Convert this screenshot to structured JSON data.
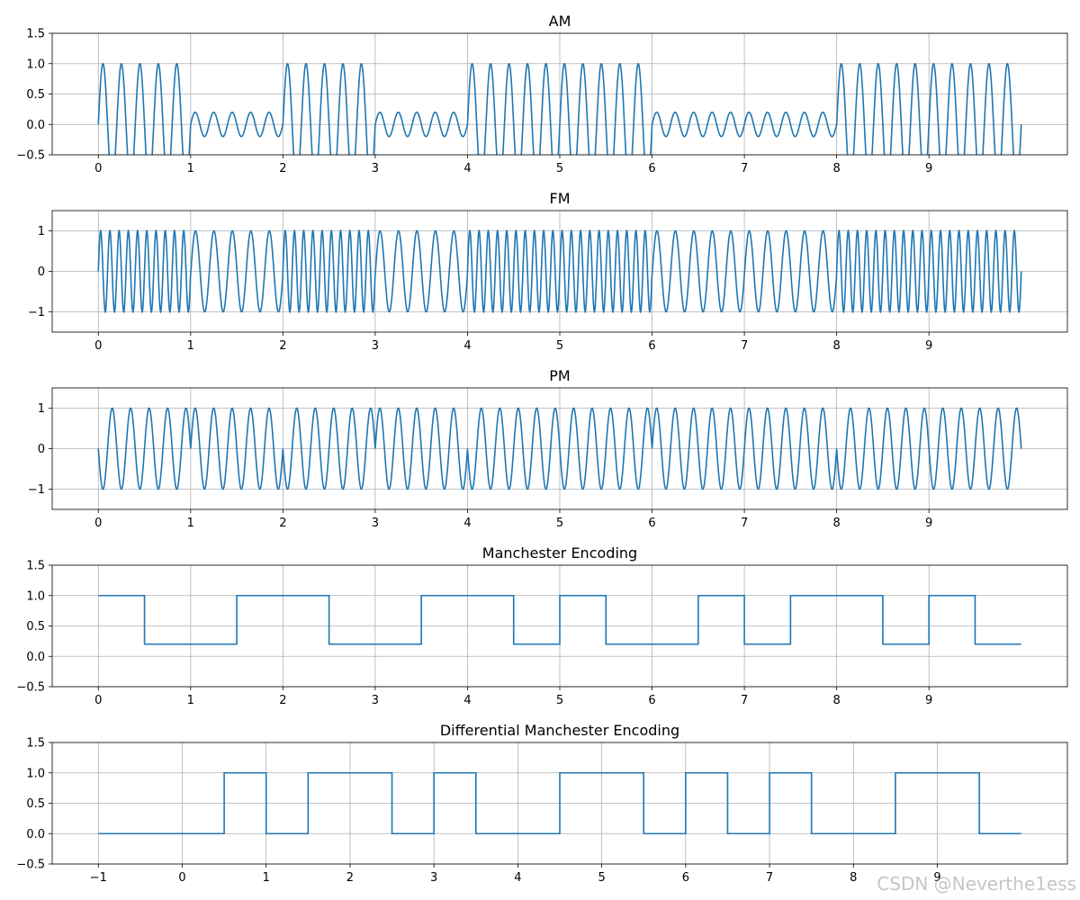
{
  "watermark": "CSDN @Neverthe1ess",
  "colors": {
    "line": "#1f77b4",
    "grid": "#b0b0b0",
    "axes": "#000000"
  },
  "chart_data": [
    {
      "type": "line",
      "title": "AM",
      "xlabel": "",
      "ylabel": "",
      "xlim": [
        -0.5,
        10.5
      ],
      "ylim": [
        -0.5,
        1.5
      ],
      "xticks": [
        0,
        1,
        2,
        3,
        4,
        5,
        6,
        7,
        8,
        9
      ],
      "yticks": [
        -0.5,
        0.0,
        0.5,
        1.0,
        1.5
      ],
      "ytick_labels": [
        "−0.5",
        "0.0",
        "0.5",
        "1.0",
        "1.5"
      ],
      "grid": true,
      "signal": {
        "kind": "am",
        "bits": [
          1,
          0,
          1,
          0,
          1,
          1,
          0,
          0,
          1,
          1
        ],
        "carrier_freq": 5,
        "amplitude_one": 1.0,
        "amplitude_zero": 0.2,
        "t_range": [
          0,
          10
        ]
      }
    },
    {
      "type": "line",
      "title": "FM",
      "xlabel": "",
      "ylabel": "",
      "xlim": [
        -0.5,
        10.5
      ],
      "ylim": [
        -1.5,
        1.5
      ],
      "xticks": [
        0,
        1,
        2,
        3,
        4,
        5,
        6,
        7,
        8,
        9
      ],
      "yticks": [
        -1,
        0,
        1
      ],
      "ytick_labels": [
        "−1",
        "0",
        "1"
      ],
      "grid": true,
      "signal": {
        "kind": "fm",
        "bits": [
          1,
          0,
          1,
          0,
          1,
          1,
          0,
          0,
          1,
          1
        ],
        "freq_one": 10,
        "freq_zero": 5,
        "t_range": [
          0,
          10
        ]
      }
    },
    {
      "type": "line",
      "title": "PM",
      "xlabel": "",
      "ylabel": "",
      "xlim": [
        -0.5,
        10.5
      ],
      "ylim": [
        -1.5,
        1.5
      ],
      "xticks": [
        0,
        1,
        2,
        3,
        4,
        5,
        6,
        7,
        8,
        9
      ],
      "yticks": [
        -1,
        0,
        1
      ],
      "ytick_labels": [
        "−1",
        "0",
        "1"
      ],
      "grid": true,
      "signal": {
        "kind": "pm",
        "bits": [
          1,
          0,
          1,
          0,
          1,
          1,
          0,
          0,
          1,
          1
        ],
        "carrier_freq": 5,
        "t_range": [
          0,
          10
        ]
      }
    },
    {
      "type": "line",
      "title": "Manchester Encoding",
      "xlabel": "",
      "ylabel": "",
      "xlim": [
        -0.5,
        10.5
      ],
      "ylim": [
        -0.5,
        1.5
      ],
      "xticks": [
        0,
        1,
        2,
        3,
        4,
        5,
        6,
        7,
        8,
        9
      ],
      "yticks": [
        -0.5,
        0.0,
        0.5,
        1.0,
        1.5
      ],
      "ytick_labels": [
        "−0.5",
        "0.0",
        "0.5",
        "1.0",
        "1.5"
      ],
      "grid": true,
      "step": {
        "x": [
          0,
          0.5,
          0.5,
          1.5,
          1.5,
          2.5,
          2.5,
          3.5,
          3.5,
          4.5,
          4.5,
          5,
          5,
          5.5,
          5.5,
          6.5,
          6.5,
          7,
          7,
          7.5,
          7.5,
          8.5,
          8.5,
          9,
          9,
          9.5,
          9.5,
          10
        ],
        "y": [
          1,
          1,
          0.2,
          0.2,
          1,
          1,
          0.2,
          0.2,
          1,
          1,
          0.2,
          0.2,
          1,
          1,
          0.2,
          0.2,
          1,
          1,
          0.2,
          0.2,
          1,
          1,
          0.2,
          0.2,
          1,
          1,
          0.2,
          0.2
        ]
      }
    },
    {
      "type": "line",
      "title": "Differential Manchester Encoding",
      "xlabel": "",
      "ylabel": "",
      "xlim": [
        -1.55,
        10.55
      ],
      "ylim": [
        -0.5,
        1.5
      ],
      "xticks": [
        -1,
        0,
        1,
        2,
        3,
        4,
        5,
        6,
        7,
        8,
        9
      ],
      "xtick_labels": [
        "−1",
        "0",
        "1",
        "2",
        "3",
        "4",
        "5",
        "6",
        "7",
        "8",
        "9"
      ],
      "yticks": [
        -0.5,
        0.0,
        0.5,
        1.0,
        1.5
      ],
      "ytick_labels": [
        "−0.5",
        "0.0",
        "0.5",
        "1.0",
        "1.5"
      ],
      "grid": true,
      "step": {
        "x": [
          -1,
          0.5,
          0.5,
          1,
          1,
          1.5,
          1.5,
          2.5,
          2.5,
          3,
          3,
          3.5,
          3.5,
          4.5,
          4.5,
          5.5,
          5.5,
          6,
          6,
          6.5,
          6.5,
          7,
          7,
          7.5,
          7.5,
          8.5,
          8.5,
          9.5,
          9.5,
          10
        ],
        "y": [
          0,
          0,
          1,
          1,
          0,
          0,
          1,
          1,
          0,
          0,
          1,
          1,
          0,
          0,
          1,
          1,
          0,
          0,
          1,
          1,
          0,
          0,
          1,
          1,
          0,
          0,
          1,
          1,
          0,
          0
        ]
      }
    }
  ]
}
